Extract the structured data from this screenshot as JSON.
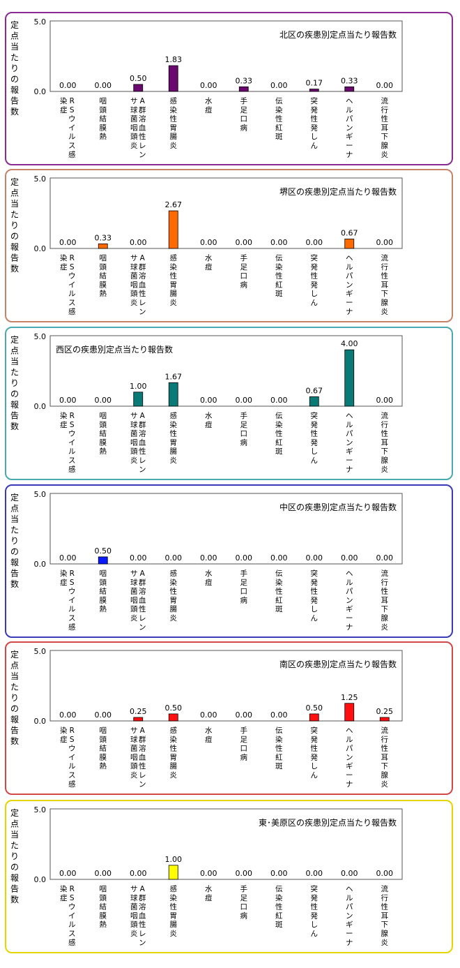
{
  "ylabel": "定点当たりの報告数",
  "chart_data": [
    {
      "type": "bar",
      "title": "北区の疾患別定点当たり報告数",
      "title_align": "right",
      "color": "#6a0a6e",
      "border": "#8a2b94",
      "categories": [
        "RSウイルス感染症",
        "咽頭結膜熱",
        "A群溶血性レンサ球菌咽頭炎",
        "感染性胃腸炎",
        "水痘",
        "手足口病",
        "伝染性紅斑",
        "突発性発しん",
        "ヘルパンギーナ",
        "流行性耳下腺炎"
      ],
      "values": [
        0.0,
        0.0,
        0.5,
        1.83,
        0.0,
        0.33,
        0.0,
        0.17,
        0.33,
        0.0
      ],
      "labels": [
        "0.00",
        "0.00",
        "0.50",
        "1.83",
        "0.00",
        "0.33",
        "0.00",
        "0.17",
        "0.33",
        "0.00"
      ],
      "ylim": [
        0,
        5
      ],
      "yticks": [
        "0.0",
        "5.0"
      ]
    },
    {
      "type": "bar",
      "title": "堺区の疾患別定点当たり報告数",
      "title_align": "right",
      "color": "#ff6a00",
      "border": "#c8826a",
      "categories": [
        "RSウイルス感染症",
        "咽頭結膜熱",
        "A群溶血性レンサ球菌咽頭炎",
        "感染性胃腸炎",
        "水痘",
        "手足口病",
        "伝染性紅斑",
        "突発性発しん",
        "ヘルパンギーナ",
        "流行性耳下腺炎"
      ],
      "values": [
        0.0,
        0.33,
        0.0,
        2.67,
        0.0,
        0.0,
        0.0,
        0.0,
        0.67,
        0.0
      ],
      "labels": [
        "0.00",
        "0.33",
        "0.00",
        "2.67",
        "0.00",
        "0.00",
        "0.00",
        "0.00",
        "0.67",
        "0.00"
      ],
      "ylim": [
        0,
        5
      ],
      "yticks": [
        "0.0",
        "5.0"
      ]
    },
    {
      "type": "bar",
      "title": "西区の疾患別定点当たり報告数",
      "title_align": "left",
      "color": "#0a7a76",
      "border": "#4aa8b0",
      "categories": [
        "RSウイルス感染症",
        "咽頭結膜熱",
        "A群溶血性レンサ球菌咽頭炎",
        "感染性胃腸炎",
        "水痘",
        "手足口病",
        "伝染性紅斑",
        "突発性発しん",
        "ヘルパンギーナ",
        "流行性耳下腺炎"
      ],
      "values": [
        0.0,
        0.0,
        1.0,
        1.67,
        0.0,
        0.0,
        0.0,
        0.67,
        4.0,
        0.0
      ],
      "labels": [
        "0.00",
        "0.00",
        "1.00",
        "1.67",
        "0.00",
        "0.00",
        "0.00",
        "0.67",
        "4.00",
        "0.00"
      ],
      "ylim": [
        0,
        5
      ],
      "yticks": [
        "0.0",
        "5.0"
      ]
    },
    {
      "type": "bar",
      "title": "中区の疾患別定点当たり報告数",
      "title_align": "right",
      "color": "#0a1aff",
      "border": "#3a3ab8",
      "categories": [
        "RSウイルス感染症",
        "咽頭結膜熱",
        "A群溶血性レンサ球菌咽頭炎",
        "感染性胃腸炎",
        "水痘",
        "手足口病",
        "伝染性紅斑",
        "突発性発しん",
        "ヘルパンギーナ",
        "流行性耳下腺炎"
      ],
      "values": [
        0.0,
        0.5,
        0.0,
        0.0,
        0.0,
        0.0,
        0.0,
        0.0,
        0.0,
        0.0
      ],
      "labels": [
        "0.00",
        "0.50",
        "0.00",
        "0.00",
        "0.00",
        "0.00",
        "0.00",
        "0.00",
        "0.00",
        "0.00"
      ],
      "ylim": [
        0,
        5
      ],
      "yticks": [
        "0.0",
        "5.0"
      ]
    },
    {
      "type": "bar",
      "title": "南区の疾患別定点当たり報告数",
      "title_align": "right",
      "color": "#ff1010",
      "border": "#d04848",
      "categories": [
        "RSウイルス感染症",
        "咽頭結膜熱",
        "A群溶血性レンサ球菌咽頭炎",
        "感染性胃腸炎",
        "水痘",
        "手足口病",
        "伝染性紅斑",
        "突発性発しん",
        "ヘルパンギーナ",
        "流行性耳下腺炎"
      ],
      "values": [
        0.0,
        0.0,
        0.25,
        0.5,
        0.0,
        0.0,
        0.0,
        0.5,
        1.25,
        0.25
      ],
      "labels": [
        "0.00",
        "0.00",
        "0.25",
        "0.50",
        "0.00",
        "0.00",
        "0.00",
        "0.50",
        "1.25",
        "0.25"
      ],
      "ylim": [
        0,
        5
      ],
      "yticks": [
        "0.0",
        "5.0"
      ]
    },
    {
      "type": "bar",
      "title": "東･美原区の疾患別定点当たり報告数",
      "title_align": "right",
      "color": "#ffff00",
      "border": "#e6d400",
      "categories": [
        "RSウイルス感染症",
        "咽頭結膜熱",
        "A群溶血性レンサ球菌咽頭炎",
        "感染性胃腸炎",
        "水痘",
        "手足口病",
        "伝染性紅斑",
        "突発性発しん",
        "ヘルパンギーナ",
        "流行性耳下腺炎"
      ],
      "values": [
        0.0,
        0.0,
        0.0,
        1.0,
        0.0,
        0.0,
        0.0,
        0.0,
        0.0,
        0.0
      ],
      "labels": [
        "0.00",
        "0.00",
        "0.00",
        "1.00",
        "0.00",
        "0.00",
        "0.00",
        "0.00",
        "0.00",
        "0.00"
      ],
      "ylim": [
        0,
        5
      ],
      "yticks": [
        "0.0",
        "5.0"
      ]
    }
  ]
}
